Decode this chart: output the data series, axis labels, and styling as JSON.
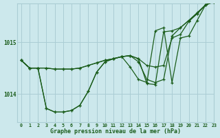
{
  "title": "Graphe pression niveau de la mer (hPa)",
  "background_color": "#cce8ec",
  "grid_color": "#aacdd4",
  "line_color": "#1a5c1a",
  "xlim": [
    -0.5,
    23
  ],
  "ylim": [
    1013.45,
    1015.75
  ],
  "yticks": [
    1014,
    1015
  ],
  "ytick_labels": [
    "1014",
    "1015"
  ],
  "xtick_labels": [
    "0",
    "1",
    "2",
    "3",
    "4",
    "5",
    "6",
    "7",
    "8",
    "9",
    "10",
    "11",
    "12",
    "13",
    "14",
    "15",
    "16",
    "17",
    "18",
    "19",
    "20",
    "21",
    "22",
    "23"
  ],
  "series": [
    [
      1014.65,
      1014.5,
      1014.5,
      1014.5,
      1014.48,
      1014.48,
      1014.48,
      1014.5,
      1014.55,
      1014.6,
      1014.65,
      1014.68,
      1014.72,
      1014.74,
      1014.68,
      1014.55,
      1014.52,
      1014.55,
      1015.08,
      1015.15,
      1015.4,
      1015.55,
      1015.72,
      1015.78
    ],
    [
      1014.65,
      1014.5,
      1014.5,
      1014.5,
      1014.48,
      1014.48,
      1014.48,
      1014.5,
      1014.55,
      1014.6,
      1014.65,
      1014.68,
      1014.72,
      1014.74,
      1014.68,
      1014.2,
      1014.18,
      1015.2,
      1015.22,
      1015.28,
      1015.42,
      1015.57,
      1015.72,
      1015.78
    ],
    [
      1014.65,
      1014.5,
      1014.5,
      1013.72,
      1013.65,
      1013.65,
      1013.68,
      1013.78,
      1014.05,
      1014.42,
      1014.62,
      1014.68,
      1014.72,
      1014.52,
      1014.28,
      1014.22,
      1015.22,
      1015.28,
      1014.22,
      1015.08,
      1015.12,
      1015.42,
      1015.72,
      1015.78
    ],
    [
      1014.65,
      1014.5,
      1014.5,
      1013.72,
      1013.65,
      1013.65,
      1013.68,
      1013.78,
      1014.05,
      1014.42,
      1014.62,
      1014.68,
      1014.72,
      1014.74,
      1014.62,
      1014.28,
      1014.22,
      1014.28,
      1015.12,
      1015.28,
      1015.42,
      1015.55,
      1015.72,
      1015.78
    ]
  ],
  "figwidth": 3.2,
  "figheight": 2.0,
  "dpi": 100
}
